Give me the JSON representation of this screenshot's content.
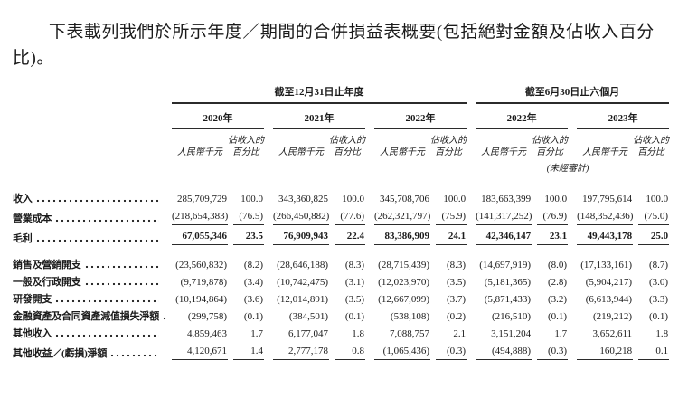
{
  "page": {
    "background": "#ffffff",
    "text_color": "#1b1b1b",
    "rule_color": "#2b2b2b"
  },
  "intro": "下表載列我們於所示年度／期間的合併損益表概要(包括絕對金額及佔收入百分比)。",
  "table": {
    "period_groups": [
      {
        "label": "截至12月31日止年度"
      },
      {
        "label": "截至6月30日止六個月"
      }
    ],
    "years": [
      "2020年",
      "2021年",
      "2022年",
      "2022年",
      "2023年"
    ],
    "amount_unit": "人民幣千元",
    "pct_line1": "佔收入的",
    "pct_line2": "百分比",
    "unaudited": "(未經審計)",
    "rows": [
      {
        "label": "收入",
        "cells": [
          "285,709,729",
          "100.0",
          "343,360,825",
          "100.0",
          "345,708,706",
          "100.0",
          "183,663,399",
          "100.0",
          "197,795,614",
          "100.0"
        ],
        "bold": false,
        "underline": false,
        "gap_before": false
      },
      {
        "label": "營業成本",
        "cells": [
          "(218,654,383)",
          "(76.5)",
          "(266,450,882)",
          "(77.6)",
          "(262,321,797)",
          "(75.9)",
          "(141,317,252)",
          "(76.9)",
          "(148,352,436)",
          "(75.0)"
        ],
        "bold": false,
        "underline": true,
        "gap_before": false
      },
      {
        "label": "毛利",
        "cells": [
          "67,055,346",
          "23.5",
          "76,909,943",
          "22.4",
          "83,386,909",
          "24.1",
          "42,346,147",
          "23.1",
          "49,443,178",
          "25.0"
        ],
        "bold": true,
        "underline": true,
        "gap_before": false
      },
      {
        "label": "銷售及營銷開支",
        "cells": [
          "(23,560,832)",
          "(8.2)",
          "(28,646,188)",
          "(8.3)",
          "(28,715,439)",
          "(8.3)",
          "(14,697,919)",
          "(8.0)",
          "(17,133,161)",
          "(8.7)"
        ],
        "bold": false,
        "underline": false,
        "gap_before": true
      },
      {
        "label": "一般及行政開支",
        "cells": [
          "(9,719,878)",
          "(3.4)",
          "(10,742,475)",
          "(3.1)",
          "(12,023,970)",
          "(3.5)",
          "(5,181,365)",
          "(2.8)",
          "(5,904,217)",
          "(3.0)"
        ],
        "bold": false,
        "underline": false,
        "gap_before": false
      },
      {
        "label": "研發開支",
        "cells": [
          "(10,194,864)",
          "(3.6)",
          "(12,014,891)",
          "(3.5)",
          "(12,667,099)",
          "(3.7)",
          "(5,871,433)",
          "(3.2)",
          "(6,613,944)",
          "(3.3)"
        ],
        "bold": false,
        "underline": false,
        "gap_before": false
      },
      {
        "label": "金融資產及合同資產減值損失淨額",
        "cells": [
          "(299,758)",
          "(0.1)",
          "(384,501)",
          "(0.1)",
          "(538,108)",
          "(0.2)",
          "(216,510)",
          "(0.1)",
          "(219,212)",
          "(0.1)"
        ],
        "bold": false,
        "underline": false,
        "gap_before": false
      },
      {
        "label": "其他收入",
        "cells": [
          "4,859,463",
          "1.7",
          "6,177,047",
          "1.8",
          "7,088,757",
          "2.1",
          "3,151,204",
          "1.7",
          "3,652,611",
          "1.8"
        ],
        "bold": false,
        "underline": false,
        "gap_before": false
      },
      {
        "label": "其他收益／(虧損)淨額",
        "cells": [
          "4,120,671",
          "1.4",
          "2,777,178",
          "0.8",
          "(1,065,436)",
          "(0.3)",
          "(494,888)",
          "(0.3)",
          "160,218",
          "0.1"
        ],
        "bold": false,
        "underline": true,
        "gap_before": false
      }
    ]
  }
}
